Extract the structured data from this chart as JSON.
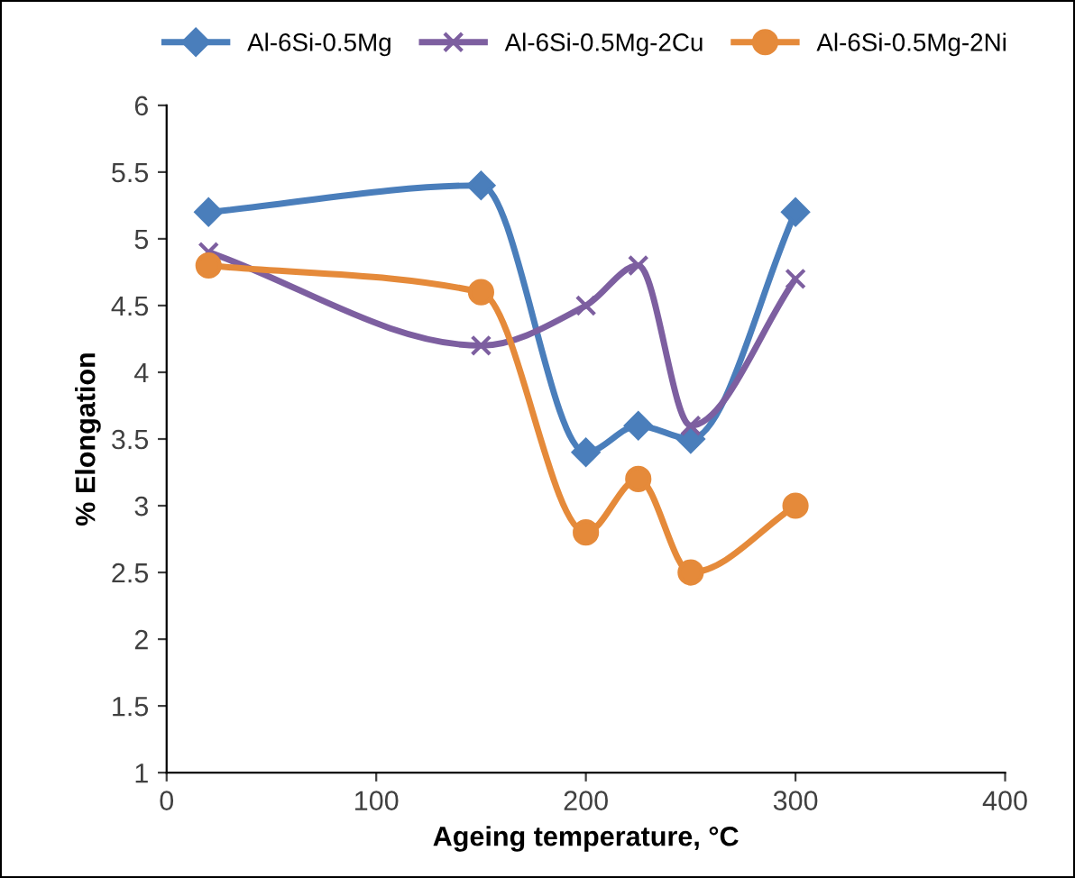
{
  "chart_data": {
    "type": "line",
    "xlabel": "Ageing temperature, °C",
    "ylabel": "% Elongation",
    "x": [
      20,
      150,
      200,
      225,
      250,
      300
    ],
    "series": [
      {
        "name": "Al-6Si-0.5Mg",
        "color": "#4a7ebb",
        "marker": "diamond",
        "values": [
          5.2,
          5.4,
          3.4,
          3.6,
          3.5,
          5.2
        ]
      },
      {
        "name": "Al-6Si-0.5Mg-2Cu",
        "color": "#7d5fa0",
        "marker": "cross",
        "values": [
          4.9,
          4.2,
          4.5,
          4.8,
          3.6,
          4.7
        ]
      },
      {
        "name": "Al-6Si-0.5Mg-2Ni",
        "color": "#e58a3a",
        "marker": "circle",
        "values": [
          4.8,
          4.6,
          2.8,
          3.2,
          2.5,
          3.0
        ]
      }
    ],
    "xlim": [
      0,
      400
    ],
    "xticks": [
      0,
      100,
      200,
      300,
      400
    ],
    "ylim": [
      1,
      6
    ],
    "yticks": [
      1,
      1.5,
      2,
      2.5,
      3,
      3.5,
      4,
      4.5,
      5,
      5.5,
      6
    ],
    "grid": false,
    "legend": "top",
    "line_style": "solid"
  }
}
